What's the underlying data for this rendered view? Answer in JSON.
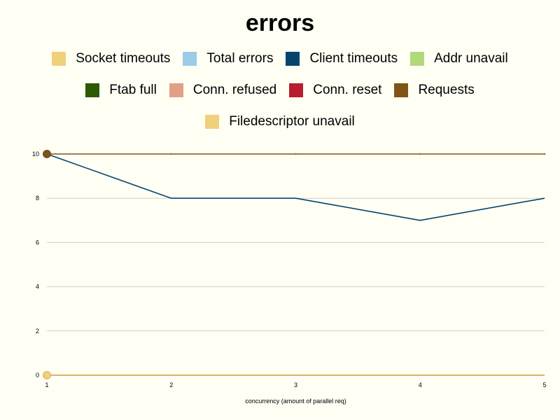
{
  "chart_data": {
    "type": "line",
    "title": "errors",
    "xlabel": "concurrency (amount of parallel req)",
    "ylabel": "",
    "x": [
      1,
      2,
      3,
      4,
      5
    ],
    "xlim": [
      1,
      5
    ],
    "ylim": [
      0,
      10
    ],
    "yticks": [
      0,
      2,
      4,
      6,
      8,
      10
    ],
    "grid": true,
    "legend_position": "top",
    "legend_rows": [
      [
        0,
        1,
        2,
        3
      ],
      [
        4,
        5,
        6,
        7
      ],
      [
        8
      ]
    ],
    "series": [
      {
        "name": "Socket timeouts",
        "color": "#f0d07a",
        "values": [
          0,
          0,
          0,
          0,
          0
        ]
      },
      {
        "name": "Total errors",
        "color": "#9ccbe8",
        "values": [
          0,
          0,
          0,
          0,
          0
        ]
      },
      {
        "name": "Client timeouts",
        "color": "#03456c",
        "values": [
          10,
          8,
          8,
          7,
          8
        ]
      },
      {
        "name": "Addr unavail",
        "color": "#b2d87a",
        "values": [
          0,
          0,
          0,
          0,
          0
        ]
      },
      {
        "name": "Ftab full",
        "color": "#2b5a00",
        "values": [
          0,
          0,
          0,
          0,
          0
        ]
      },
      {
        "name": "Conn. refused",
        "color": "#dfa085",
        "values": [
          0,
          0,
          0,
          0,
          0
        ]
      },
      {
        "name": "Conn. reset",
        "color": "#b71f2e",
        "values": [
          0,
          0,
          0,
          0,
          0
        ]
      },
      {
        "name": "Requests",
        "color": "#7f5417",
        "values": [
          10,
          10,
          10,
          10,
          10
        ]
      },
      {
        "name": "Filedescriptor unavail",
        "color": "#f0d07a",
        "values": [
          0,
          0,
          0,
          0,
          0
        ]
      }
    ]
  }
}
